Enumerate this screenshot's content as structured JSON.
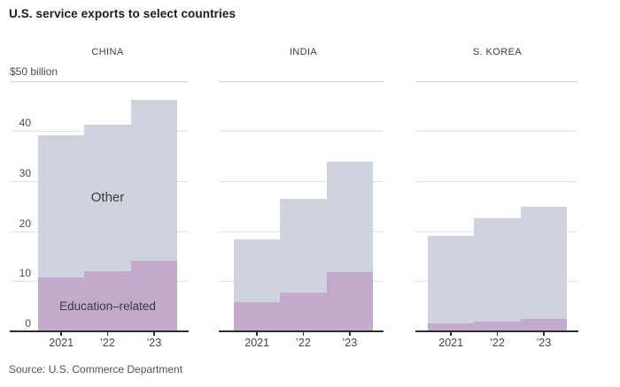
{
  "title": "U.S. service exports to select countries",
  "source_note": "Source: U.S. Commerce Department",
  "y_axis": {
    "unit_label": "$50 billion",
    "ticks": [
      "40",
      "30",
      "20",
      "10",
      "0"
    ],
    "min": 0,
    "max": 50
  },
  "annotations": {
    "other_label": "Other",
    "education_label": "Education–related"
  },
  "colors": {
    "other_segment": "#cfd3de",
    "education_segment": "#c2aacd",
    "axis": "#2e2e2e",
    "gridline": "#e2e2e2"
  },
  "chart_data": [
    {
      "type": "bar",
      "stacked": true,
      "title": "CHINA",
      "categories": [
        "2021",
        "’22",
        "’23"
      ],
      "series": [
        {
          "name": "Education-related",
          "values": [
            10.7,
            12.0,
            14.1
          ]
        },
        {
          "name": "Other",
          "values": [
            28.4,
            29.2,
            32.1
          ]
        }
      ],
      "totals": [
        39.1,
        41.2,
        46.2
      ],
      "ylabel": "$ billion",
      "ylim": [
        0,
        50
      ],
      "grid": true,
      "legend": "labels-inside-first-panel"
    },
    {
      "type": "bar",
      "stacked": true,
      "title": "INDIA",
      "categories": [
        "2021",
        "’22",
        "’23"
      ],
      "series": [
        {
          "name": "Education-related",
          "values": [
            5.9,
            7.7,
            11.8
          ]
        },
        {
          "name": "Other",
          "values": [
            12.4,
            18.8,
            22.0
          ]
        }
      ],
      "totals": [
        18.3,
        26.5,
        33.8
      ],
      "ylabel": "$ billion",
      "ylim": [
        0,
        50
      ],
      "grid": true
    },
    {
      "type": "bar",
      "stacked": true,
      "title": "S. KOREA",
      "categories": [
        "2021",
        "’22",
        "’23"
      ],
      "series": [
        {
          "name": "Education-related",
          "values": [
            1.6,
            2.0,
            2.4
          ]
        },
        {
          "name": "Other",
          "values": [
            17.5,
            20.5,
            22.4
          ]
        }
      ],
      "totals": [
        19.1,
        22.5,
        24.8
      ],
      "ylabel": "$ billion",
      "ylim": [
        0,
        50
      ],
      "grid": true
    }
  ]
}
